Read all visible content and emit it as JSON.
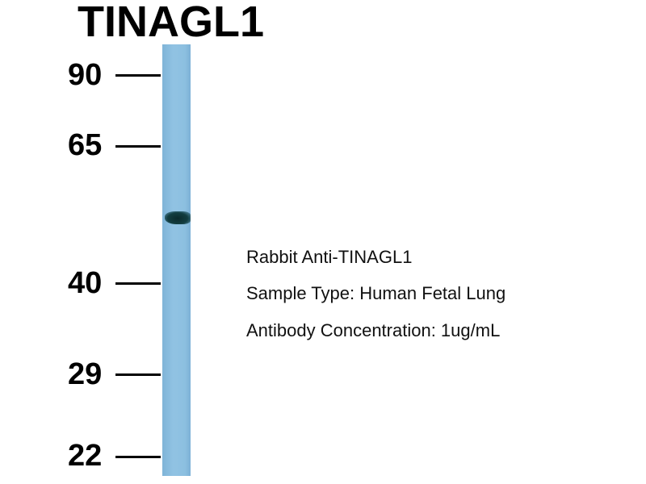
{
  "title": "TINAGL1",
  "markers": [
    "90",
    "65",
    "40",
    "29",
    "22"
  ],
  "info": [
    "Rabbit Anti-TINAGL1",
    "Sample Type: Human Fetal Lung",
    "Antibody Concentration: 1ug/mL"
  ],
  "colors": {
    "lane": "#8cbfe0",
    "band": "#123d40"
  }
}
